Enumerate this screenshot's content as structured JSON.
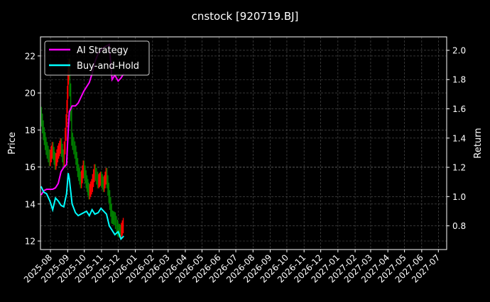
{
  "chart_data": {
    "type": "line",
    "title": "cnstock [920719.BJ]",
    "ylabel": "Price",
    "ylabel_right": "Return",
    "xlim": [
      "2025-07-14",
      "2027-07-16"
    ],
    "ylim": [
      11.54,
      23.03
    ],
    "ylim_right": [
      0.638,
      2.092
    ],
    "yticks": [
      12,
      14,
      16,
      18,
      20,
      22
    ],
    "yticks_right": [
      "0.8",
      "1.0",
      "1.2",
      "1.4",
      "1.6",
      "1.8",
      "2.0"
    ],
    "xticks": [
      "2025-08",
      "2025-09",
      "2025-10",
      "2025-11",
      "2025-12",
      "2026-01",
      "2026-02",
      "2026-03",
      "2026-04",
      "2026-05",
      "2026-06",
      "2026-07",
      "2026-08",
      "2026-09",
      "2026-10",
      "2026-11",
      "2026-12",
      "2027-01",
      "2027-02",
      "2027-03",
      "2027-04",
      "2027-05",
      "2027-06",
      "2027-07"
    ],
    "grid": true,
    "legend_placement": "top-left",
    "background": "#000000",
    "x": [
      "2025-07-15",
      "2025-07-20",
      "2025-07-25",
      "2025-07-31",
      "2025-08-05",
      "2025-08-10",
      "2025-08-15",
      "2025-08-20",
      "2025-08-25",
      "2025-08-30",
      "2025-09-02",
      "2025-09-04",
      "2025-09-09",
      "2025-09-15",
      "2025-09-20",
      "2025-09-25",
      "2025-09-30",
      "2025-10-05",
      "2025-10-10",
      "2025-10-15",
      "2025-10-20",
      "2025-10-26",
      "2025-10-31",
      "2025-11-05",
      "2025-11-10",
      "2025-11-15",
      "2025-11-20",
      "2025-11-25",
      "2025-12-01",
      "2025-12-06",
      "2025-12-11"
    ],
    "price": {
      "axis": "left",
      "up_color": "#ff0000",
      "down_color": "#008000",
      "close": [
        18.9,
        17.8,
        17.0,
        16.4,
        17.0,
        16.2,
        16.8,
        17.2,
        16.3,
        18.5,
        20.8,
        21.5,
        17.5,
        16.8,
        15.8,
        15.2,
        16.0,
        15.2,
        14.6,
        15.0,
        15.8,
        15.2,
        15.4,
        15.0,
        15.6,
        14.4,
        13.3,
        13.2,
        12.6,
        12.5,
        12.9
      ]
    },
    "series": [
      {
        "name": "AI Strategy",
        "axis": "right",
        "color": "#ff00ff",
        "values": [
          1.01,
          1.04,
          1.05,
          1.05,
          1.05,
          1.06,
          1.09,
          1.17,
          1.2,
          1.22,
          1.45,
          1.58,
          1.62,
          1.62,
          1.64,
          1.68,
          1.72,
          1.75,
          1.78,
          1.84,
          1.92,
          1.98,
          2.0,
          2.02,
          2.03,
          2.04,
          1.8,
          1.83,
          1.79,
          1.81,
          1.84
        ]
      },
      {
        "name": "Buy-and-Hold",
        "axis": "right",
        "color": "#00ffff",
        "values": [
          1.07,
          1.03,
          1.02,
          0.97,
          0.91,
          0.99,
          0.97,
          0.94,
          0.93,
          1.02,
          1.16,
          1.12,
          0.95,
          0.89,
          0.87,
          0.88,
          0.89,
          0.9,
          0.87,
          0.91,
          0.88,
          0.89,
          0.92,
          0.9,
          0.88,
          0.8,
          0.77,
          0.74,
          0.76,
          0.71,
          0.73
        ]
      }
    ]
  }
}
